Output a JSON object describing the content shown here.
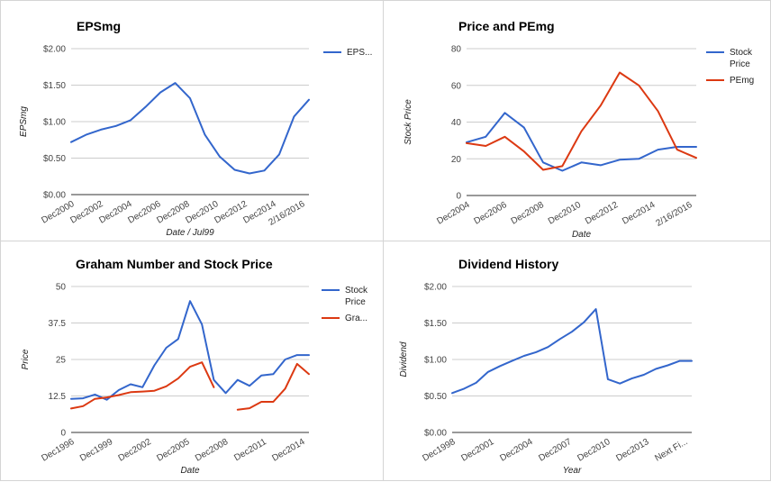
{
  "colors": {
    "blue": "#3366cc",
    "red": "#dc3912"
  },
  "chart_data": [
    {
      "type": "line",
      "title": "EPSmg",
      "xlabel": "Date / Jul99",
      "ylabel": "EPSmg",
      "ylim": [
        0,
        2
      ],
      "y_ticks": [
        "$0.00",
        "$0.50",
        "$1.00",
        "$1.50",
        "$2.00"
      ],
      "x_ticks": [
        "Dec2000",
        "Dec2002",
        "Dec2004",
        "Dec2006",
        "Dec2008",
        "Dec2010",
        "Dec2012",
        "Dec2014",
        "2/16/2016"
      ],
      "legend": "right",
      "series": [
        {
          "name": "EPS...",
          "color": "#3366cc",
          "values": [
            0.72,
            0.82,
            0.89,
            0.94,
            1.02,
            1.2,
            1.4,
            1.53,
            1.32,
            0.82,
            0.52,
            0.34,
            0.29,
            0.33,
            0.55,
            1.07,
            1.3
          ]
        }
      ]
    },
    {
      "type": "line",
      "title": "Price and PEmg",
      "xlabel": "Date",
      "ylabel": "Stock Price",
      "ylim": [
        0,
        80
      ],
      "y_ticks": [
        "0",
        "20",
        "40",
        "60",
        "80"
      ],
      "x_ticks": [
        "Dec2004",
        "Dec2006",
        "Dec2008",
        "Dec2010",
        "Dec2012",
        "Dec2014",
        "2/16/2016"
      ],
      "legend": "right",
      "series": [
        {
          "name": "Stock Price",
          "name_lines": [
            "Stock",
            "Price"
          ],
          "color": "#3366cc",
          "values": [
            29,
            32,
            45,
            37,
            18,
            13.5,
            18,
            16.5,
            19.5,
            20,
            25,
            26.5,
            26.5
          ]
        },
        {
          "name": "PEmg",
          "name_lines": [
            "PEmg"
          ],
          "color": "#dc3912",
          "values": [
            28.5,
            27,
            32,
            24,
            14,
            16,
            35,
            49,
            67,
            60,
            46,
            25,
            20.5
          ]
        }
      ]
    },
    {
      "type": "line",
      "title": "Graham Number and Stock Price",
      "xlabel": "Date",
      "ylabel": "Price",
      "ylim": [
        0,
        50
      ],
      "y_ticks": [
        "0",
        "12.5",
        "25",
        "37.5",
        "50"
      ],
      "x_ticks": [
        "Dec1996",
        "Dec1999",
        "Dec2002",
        "Dec2005",
        "Dec2008",
        "Dec2011",
        "Dec2014"
      ],
      "legend": "right",
      "series": [
        {
          "name": "Stock Price",
          "name_lines": [
            "Stock",
            "Price"
          ],
          "color": "#3366cc",
          "values": [
            11.5,
            11.7,
            13,
            11.2,
            14.5,
            16.5,
            15.5,
            23,
            29,
            32,
            45,
            37,
            18,
            13.5,
            18,
            16,
            19.5,
            20,
            25,
            26.5,
            26.5
          ]
        },
        {
          "name": "Gra...",
          "name_lines": [
            "Gra..."
          ],
          "color": "#dc3912",
          "values": [
            8.2,
            9,
            11.5,
            12,
            12.8,
            13.8,
            14,
            14.3,
            15.8,
            18.5,
            22.5,
            24,
            15.5,
            null,
            7.8,
            8.3,
            10.5,
            10.5,
            15,
            23.5,
            20
          ]
        }
      ]
    },
    {
      "type": "line",
      "title": "Dividend History",
      "xlabel": "Year",
      "ylabel": "Dividend",
      "ylim": [
        0,
        2
      ],
      "y_ticks": [
        "$0.00",
        "$0.50",
        "$1.00",
        "$1.50",
        "$2.00"
      ],
      "x_ticks": [
        "Dec1998",
        "Dec2001",
        "Dec2004",
        "Dec2007",
        "Dec2010",
        "Dec2013",
        "Next Fi..."
      ],
      "series": [
        {
          "name": "Dividend",
          "color": "#3366cc",
          "values": [
            0.54,
            0.6,
            0.68,
            0.83,
            0.91,
            0.98,
            1.05,
            1.1,
            1.17,
            1.28,
            1.38,
            1.51,
            1.69,
            0.73,
            0.67,
            0.74,
            0.79,
            0.87,
            0.92,
            0.98,
            0.98
          ]
        }
      ]
    }
  ]
}
